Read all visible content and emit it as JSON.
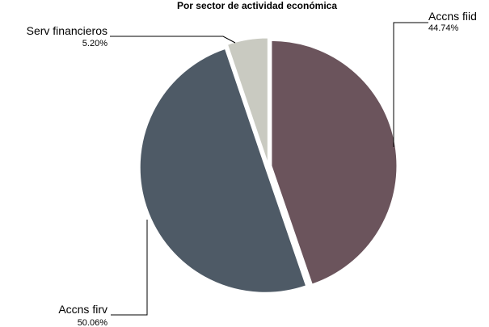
{
  "chart_data": {
    "type": "pie",
    "title": "Por sector de actividad económica",
    "start_angle_deg": 0,
    "direction": "clockwise",
    "slices": [
      {
        "name": "Accns fiid",
        "value": 44.74,
        "value_label": "44.74%",
        "color": "#6b545c"
      },
      {
        "name": "Accns firv",
        "value": 50.06,
        "value_label": "50.06%",
        "color": "#4e5a66"
      },
      {
        "name": "Serv financieros",
        "value": 5.2,
        "value_label": "5.20%",
        "color": "#c9cac1"
      }
    ]
  }
}
